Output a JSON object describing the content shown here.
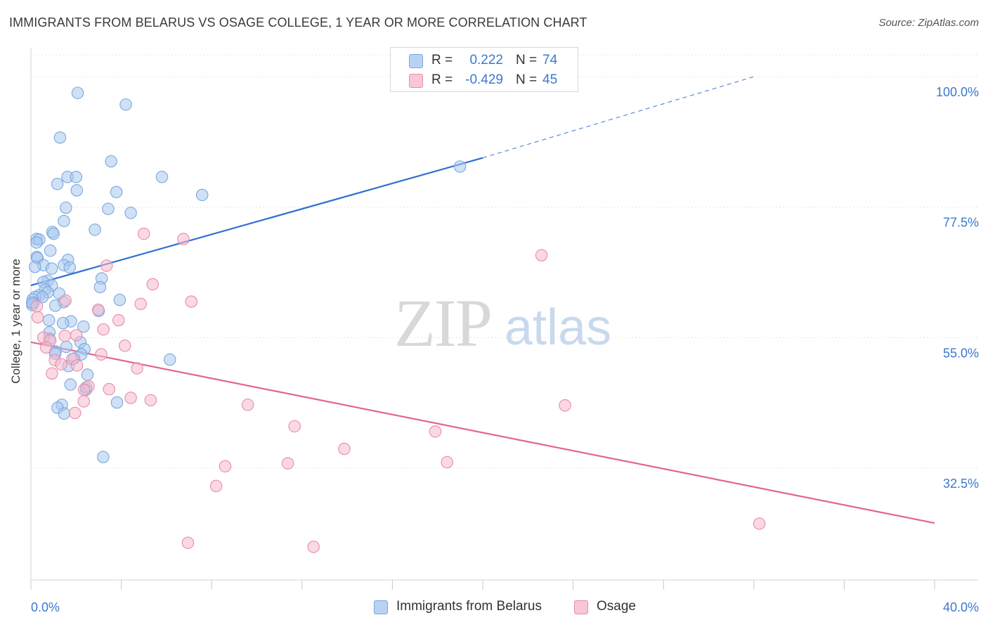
{
  "title": "IMMIGRANTS FROM BELARUS VS OSAGE COLLEGE, 1 YEAR OR MORE CORRELATION CHART",
  "source": "Source: ZipAtlas.com",
  "watermark": {
    "zip": "ZIP",
    "atlas": "atlas"
  },
  "legend": {
    "rows": [
      {
        "r_label": "R =",
        "r_value": "0.222",
        "n_label": "N =",
        "n_value": "74"
      },
      {
        "r_label": "R =",
        "r_value": "-0.429",
        "n_label": "N =",
        "n_value": "45"
      }
    ]
  },
  "chart_data": {
    "type": "scatter",
    "title": "IMMIGRANTS FROM BELARUS VS OSAGE COLLEGE, 1 YEAR OR MORE CORRELATION CHART",
    "xlabel": "",
    "ylabel": "College, 1 year or more",
    "xlim": [
      0,
      40
    ],
    "ylim": [
      13.2,
      104.5
    ],
    "x_ticks": [
      "0.0%",
      "40.0%"
    ],
    "y_ticks": [
      {
        "value": 32.5,
        "label": "32.5%"
      },
      {
        "value": 55.0,
        "label": "55.0%"
      },
      {
        "value": 77.5,
        "label": "77.5%"
      },
      {
        "value": 100.0,
        "label": "100.0%"
      }
    ],
    "grid": true,
    "legend_position": "top-center",
    "series": [
      {
        "name": "Immigrants from Belarus",
        "color": "#7aa7e0",
        "fill": "#a9c8ef",
        "trend_color": "#2f6fd0",
        "trend": {
          "x0": 0.0,
          "y0": 64.0,
          "x1": 20.0,
          "y1": 86.0,
          "dash_x1": 32.0,
          "dash_y1": 100.0
        },
        "points": [
          [
            2.07,
            97.2
          ],
          [
            4.2,
            95.2
          ],
          [
            1.29,
            89.5
          ],
          [
            3.55,
            85.4
          ],
          [
            1.62,
            82.7
          ],
          [
            2.0,
            82.7
          ],
          [
            5.8,
            82.7
          ],
          [
            1.17,
            81.5
          ],
          [
            2.03,
            80.4
          ],
          [
            3.78,
            80.1
          ],
          [
            7.58,
            79.6
          ],
          [
            1.55,
            77.4
          ],
          [
            3.42,
            77.2
          ],
          [
            4.42,
            76.5
          ],
          [
            1.46,
            75.1
          ],
          [
            2.83,
            73.6
          ],
          [
            0.95,
            73.2
          ],
          [
            1.0,
            72.9
          ],
          [
            0.25,
            72.0
          ],
          [
            0.37,
            71.9
          ],
          [
            0.25,
            71.4
          ],
          [
            0.86,
            70.0
          ],
          [
            0.26,
            68.9
          ],
          [
            0.29,
            68.7
          ],
          [
            1.64,
            68.4
          ],
          [
            0.55,
            67.5
          ],
          [
            1.46,
            67.5
          ],
          [
            0.18,
            67.2
          ],
          [
            1.72,
            67.1
          ],
          [
            0.92,
            66.9
          ],
          [
            3.13,
            65.2
          ],
          [
            0.74,
            64.8
          ],
          [
            0.55,
            64.6
          ],
          [
            0.92,
            64.0
          ],
          [
            3.06,
            63.7
          ],
          [
            0.63,
            63.3
          ],
          [
            0.74,
            62.8
          ],
          [
            1.25,
            62.6
          ],
          [
            0.37,
            62.3
          ],
          [
            0.19,
            62.0
          ],
          [
            0.51,
            62.0
          ],
          [
            0.08,
            61.6
          ],
          [
            3.93,
            61.5
          ],
          [
            1.45,
            61.1
          ],
          [
            0.12,
            61.0
          ],
          [
            0.06,
            60.6
          ],
          [
            1.08,
            60.5
          ],
          [
            3.0,
            59.6
          ],
          [
            0.8,
            58.0
          ],
          [
            1.77,
            57.8
          ],
          [
            1.42,
            57.5
          ],
          [
            2.33,
            56.9
          ],
          [
            0.82,
            55.9
          ],
          [
            0.82,
            54.8
          ],
          [
            2.19,
            54.2
          ],
          [
            1.57,
            53.4
          ],
          [
            2.37,
            53.0
          ],
          [
            1.09,
            52.6
          ],
          [
            1.07,
            52.2
          ],
          [
            2.23,
            52.1
          ],
          [
            1.91,
            51.4
          ],
          [
            6.15,
            51.2
          ],
          [
            1.66,
            50.1
          ],
          [
            2.5,
            48.6
          ],
          [
            1.75,
            46.9
          ],
          [
            2.44,
            46.0
          ],
          [
            3.81,
            43.8
          ],
          [
            1.37,
            43.4
          ],
          [
            1.18,
            42.9
          ],
          [
            1.47,
            41.9
          ],
          [
            3.2,
            34.4
          ],
          [
            18.99,
            84.5
          ],
          [
            0.05,
            61.0
          ],
          [
            2.45,
            46.4
          ]
        ]
      },
      {
        "name": "Osage",
        "color": "#e88ba8",
        "fill": "#f5b9cc",
        "trend_color": "#e0668f",
        "trend": {
          "x0": 0.0,
          "y0": 54.2,
          "x1": 40.0,
          "y1": 23.0
        },
        "points": [
          [
            5.0,
            72.9
          ],
          [
            6.75,
            72.0
          ],
          [
            22.6,
            69.2
          ],
          [
            3.35,
            67.4
          ],
          [
            5.39,
            64.2
          ],
          [
            1.53,
            61.4
          ],
          [
            7.1,
            61.2
          ],
          [
            4.86,
            60.8
          ],
          [
            0.26,
            60.4
          ],
          [
            2.98,
            59.8
          ],
          [
            3.88,
            58.0
          ],
          [
            0.3,
            58.5
          ],
          [
            3.21,
            56.4
          ],
          [
            2.01,
            55.4
          ],
          [
            0.55,
            55.0
          ],
          [
            0.86,
            54.5
          ],
          [
            4.16,
            53.6
          ],
          [
            0.67,
            53.3
          ],
          [
            3.11,
            52.1
          ],
          [
            1.06,
            51.1
          ],
          [
            1.83,
            51.3
          ],
          [
            1.34,
            50.4
          ],
          [
            2.04,
            50.2
          ],
          [
            4.7,
            49.7
          ],
          [
            0.93,
            48.8
          ],
          [
            2.55,
            46.6
          ],
          [
            3.46,
            46.1
          ],
          [
            2.35,
            46.0
          ],
          [
            4.42,
            44.6
          ],
          [
            5.3,
            44.2
          ],
          [
            2.34,
            44.0
          ],
          [
            9.6,
            43.4
          ],
          [
            23.64,
            43.3
          ],
          [
            1.95,
            42.0
          ],
          [
            11.67,
            39.7
          ],
          [
            17.9,
            38.8
          ],
          [
            13.87,
            35.8
          ],
          [
            18.42,
            33.5
          ],
          [
            11.37,
            33.3
          ],
          [
            8.6,
            32.8
          ],
          [
            8.2,
            29.4
          ],
          [
            32.24,
            22.9
          ],
          [
            6.95,
            19.6
          ],
          [
            12.51,
            18.9
          ],
          [
            1.5,
            55.3
          ]
        ]
      }
    ]
  },
  "bottom_legend": [
    {
      "label": "Immigrants from Belarus"
    },
    {
      "label": "Osage"
    }
  ]
}
